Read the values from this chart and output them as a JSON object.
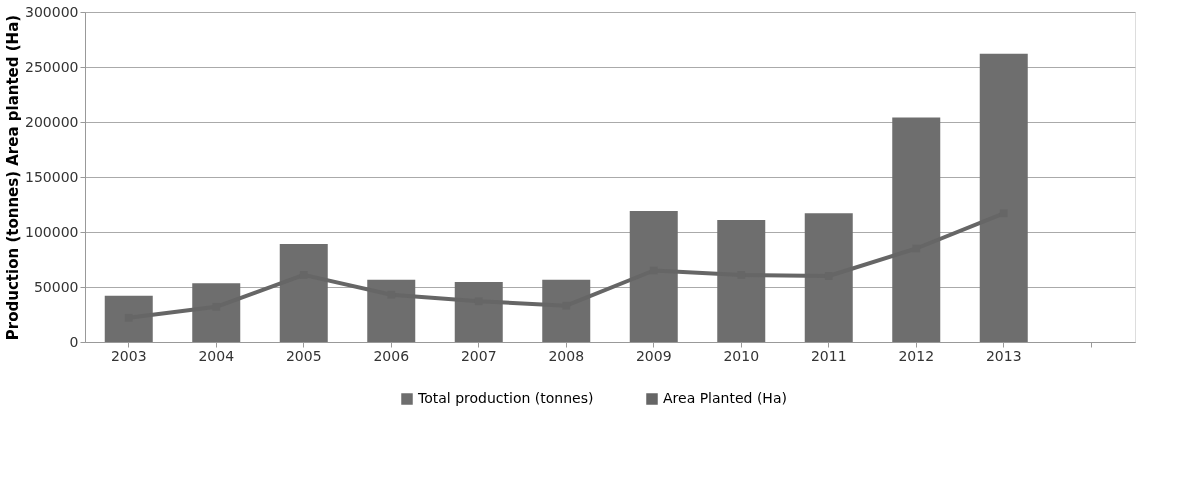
{
  "chart_data": {
    "type": "bar",
    "ylabel": "Production (tonnes) Area planted (Ha)",
    "categories": [
      "2003",
      "2004",
      "2005",
      "2006",
      "2007",
      "2008",
      "2009",
      "2010",
      "2011",
      "2012",
      "2013",
      null
    ],
    "series": [
      {
        "name": "Total production (tonnes)",
        "color": "#6e6e6e",
        "values": [
          42000,
          53500,
          89000,
          56500,
          54500,
          56500,
          119000,
          111000,
          117000,
          204000,
          262000,
          null
        ]
      },
      {
        "name": "Area Planted  (Ha)",
        "type": "line",
        "color": "#666666",
        "marker": "square",
        "values": [
          22000,
          32000,
          61000,
          43000,
          37000,
          33000,
          65000,
          61000,
          60000,
          85000,
          117000,
          null
        ]
      }
    ],
    "ylim": [
      0,
      300000
    ],
    "yticks": [
      0,
      50000,
      100000,
      150000,
      200000,
      250000,
      300000
    ],
    "grid": "y",
    "legend": "bottom"
  }
}
